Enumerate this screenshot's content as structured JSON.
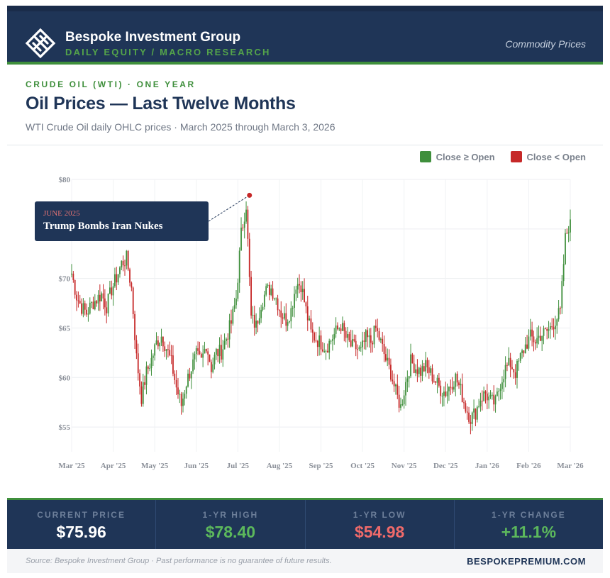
{
  "header": {
    "brand_name": "Bespoke Investment Group",
    "brand_tagline": "DAILY EQUITY / MACRO RESEARCH",
    "section": "Commodity Prices"
  },
  "kicker": "CRUDE OIL (WTI) · ONE YEAR",
  "title": "Oil Prices — Last Twelve Months",
  "subtitle": "WTI Crude Oil daily OHLC prices · March 2025 through March 3, 2026",
  "legend": [
    {
      "label": "Close ≥ Open",
      "color": "#3f8f3c"
    },
    {
      "label": "Close < Open",
      "color": "#c62828"
    }
  ],
  "annotation": {
    "date": "JUNE 2025",
    "text": "Trump Bombs Iran Nukes"
  },
  "stats": [
    {
      "label": "CURRENT PRICE",
      "value": "$75.96",
      "color": "#ffffff"
    },
    {
      "label": "1-YR HIGH",
      "value": "$78.40",
      "color": "#5cb85c"
    },
    {
      "label": "1-YR LOW",
      "value": "$54.98",
      "color": "#ef6a6a"
    },
    {
      "label": "1-YR CHANGE",
      "value": "+11.1%",
      "color": "#5cb85c"
    }
  ],
  "footer": {
    "source": "Source: Bespoke Investment Group · Past performance is no guarantee of future results.",
    "site": "BESPOKEPREMIUM.COM"
  },
  "colors": {
    "navy": "#1f3557",
    "up": "#3f8f3c",
    "down": "#c62828"
  },
  "chart_data": {
    "type": "candlestick",
    "ylim": [
      52.5,
      80
    ],
    "y_ticks": [
      55,
      60,
      65,
      70,
      75,
      80
    ],
    "y_tick_labels": [
      "$55",
      "$60",
      "$65",
      "$70",
      "$75",
      "$80"
    ],
    "x_tick_labels": [
      "Mar '25",
      "Apr '25",
      "May '25",
      "Jun '25",
      "Jul '25",
      "Aug '25",
      "Sep '25",
      "Oct '25",
      "Nov '25",
      "Dec '25",
      "Jan '26",
      "Feb '26",
      "Mar '26"
    ],
    "grid": true,
    "legend_position": "top-right",
    "trend_closes": [
      70.5,
      68.2,
      67.1,
      66.5,
      67.4,
      67.9,
      68.4,
      67.2,
      68.9,
      70.1,
      71.5,
      72.0,
      69.0,
      62.0,
      58.0,
      60.5,
      61.8,
      63.5,
      64.2,
      63.0,
      61.5,
      59.0,
      57.2,
      59.5,
      61.0,
      62.2,
      61.6,
      63.4,
      61.0,
      62.5,
      62.6,
      64.0,
      65.5,
      68.0,
      74.5,
      77.5,
      66.0,
      65.2,
      67.5,
      68.7,
      69.0,
      68.0,
      66.5,
      65.8,
      66.8,
      69.5,
      69.4,
      66.8,
      64.5,
      63.9,
      63.5,
      63.0,
      63.8,
      64.6,
      65.3,
      64.0,
      63.2,
      63.0,
      62.6,
      64.0,
      63.6,
      64.9,
      63.5,
      61.8,
      60.5,
      58.5,
      57.0,
      59.5,
      61.6,
      61.0,
      60.6,
      61.1,
      60.4,
      59.6,
      58.8,
      58.5,
      59.3,
      60.0,
      58.7,
      57.0,
      55.9,
      56.5,
      57.9,
      58.4,
      57.6,
      57.4,
      59.5,
      60.9,
      61.4,
      60.5,
      62.0,
      63.2,
      64.1,
      63.7,
      64.3,
      64.5,
      65.0,
      65.8,
      66.6,
      74.0,
      75.96
    ],
    "candles_per_segment": 3,
    "count": 250
  }
}
